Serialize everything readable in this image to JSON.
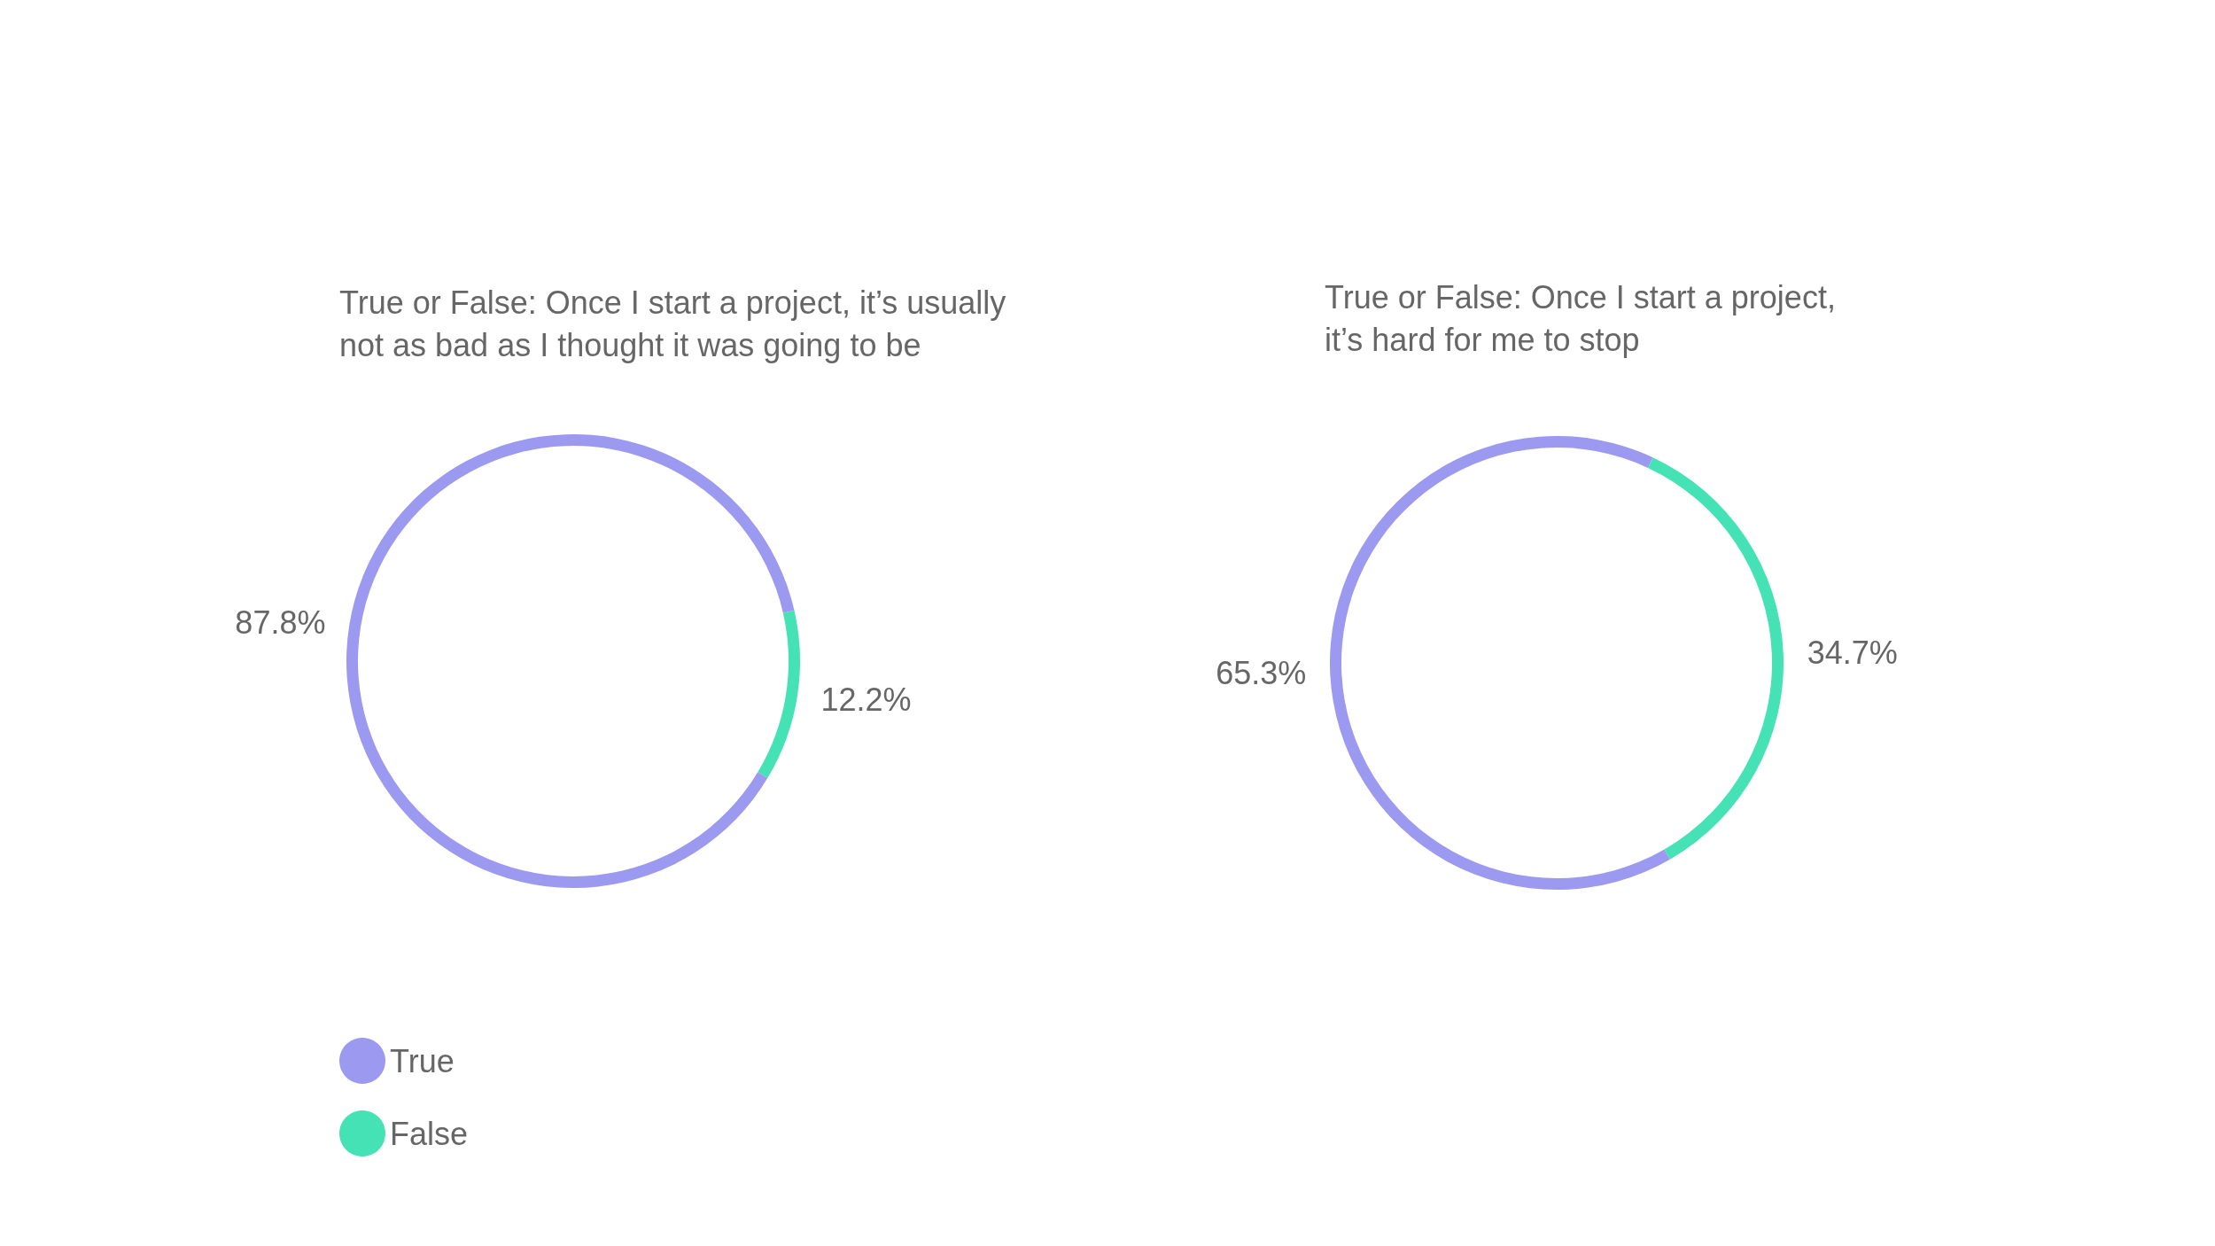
{
  "chart_data": [
    {
      "type": "donut",
      "title": "True or False: Once I start a project, it’s usually\nnot as bad as I thought it was going to be",
      "categories": [
        "True",
        "False"
      ],
      "values": [
        87.8,
        12.2
      ],
      "value_labels": [
        "87.8%",
        "12.2%"
      ],
      "colors": [
        "#9b99f0",
        "#45e2b5"
      ],
      "legend": "bottom left"
    },
    {
      "type": "donut",
      "title": "True or False: Once I start a project,\nit’s hard for me to stop",
      "categories": [
        null,
        null
      ],
      "values": [
        65.3,
        34.7
      ],
      "value_labels": [
        "65.3%",
        "34.7%"
      ],
      "colors": [
        "#9b99f0",
        "#45e2b5"
      ],
      "legend": false
    }
  ]
}
